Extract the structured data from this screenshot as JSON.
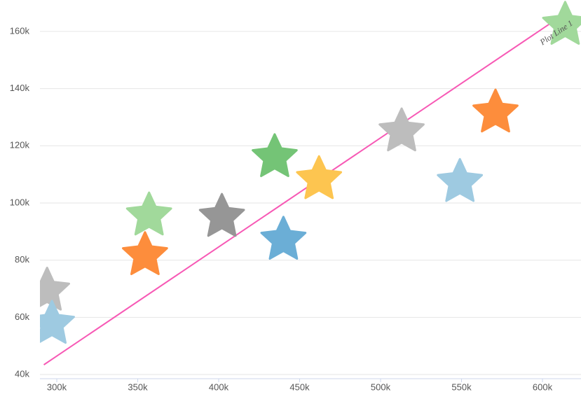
{
  "chart_data": {
    "type": "scatter",
    "xlim": [
      289600,
      623800
    ],
    "ylim": [
      40000,
      171000
    ],
    "xticks": [
      {
        "value": 300000,
        "label": "300k"
      },
      {
        "value": 350000,
        "label": "350k"
      },
      {
        "value": 400000,
        "label": "400k"
      },
      {
        "value": 450000,
        "label": "450k"
      },
      {
        "value": 500000,
        "label": "500k"
      },
      {
        "value": 550000,
        "label": "550k"
      },
      {
        "value": 600000,
        "label": "600k"
      }
    ],
    "yticks": [
      {
        "value": 40000,
        "label": "40k"
      },
      {
        "value": 60000,
        "label": "60k"
      },
      {
        "value": 80000,
        "label": "80k"
      },
      {
        "value": 100000,
        "label": "100k"
      },
      {
        "value": 120000,
        "label": "120k"
      },
      {
        "value": 140000,
        "label": "140k"
      },
      {
        "value": 160000,
        "label": "160k"
      }
    ],
    "grid": true,
    "series": [
      {
        "x": [
          294000,
          297000,
          357000,
          354500,
          402000,
          434600,
          440000,
          462000,
          513000,
          549000,
          571000,
          614000
        ],
        "values": [
          70000,
          58400,
          96300,
          82400,
          95800,
          116700,
          87800,
          109000,
          125700,
          108000,
          132300,
          163000
        ],
        "colors": [
          "#bdbdbd",
          "#9ecae1",
          "#a1d99b",
          "#fd8d3c",
          "#969696",
          "#74c476",
          "#6baed6",
          "#fdc550",
          "#bdbdbd",
          "#9ecae1",
          "#fd8d3c",
          "#a1d99b"
        ]
      }
    ],
    "plot_line": {
      "label": "Plot Line 1",
      "color": "#f759b5",
      "x": [
        292000,
        608000
      ],
      "y": [
        43400,
        164000
      ]
    }
  }
}
